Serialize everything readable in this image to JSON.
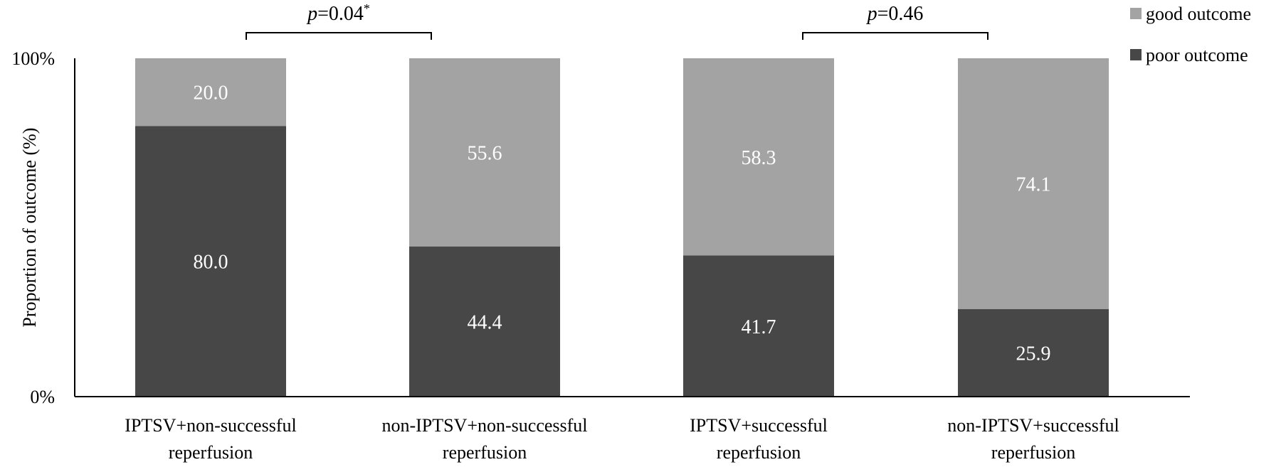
{
  "chart_data": {
    "type": "bar",
    "stacked": true,
    "ylabel": "Proportion of outcome (%)",
    "y_tick_labels": [
      "0%",
      "100%"
    ],
    "ylim": [
      0,
      100
    ],
    "categories": [
      [
        "IPTSV+non-successful",
        "reperfusion"
      ],
      [
        "non-IPTSV+non-successful",
        "reperfusion"
      ],
      [
        "IPTSV+successful",
        "reperfusion"
      ],
      [
        "non-IPTSV+successful",
        "reperfusion"
      ]
    ],
    "series": [
      {
        "name": "poor outcome",
        "color": "#474747",
        "label_color": "#ffffff",
        "values": [
          80.0,
          44.4,
          41.7,
          25.9
        ],
        "labels": [
          "80.0",
          "44.4",
          "41.7",
          "25.9"
        ]
      },
      {
        "name": "good outcome",
        "color": "#a3a3a3",
        "label_color": "#ffffff",
        "values": [
          20.0,
          55.6,
          58.3,
          74.1
        ],
        "labels": [
          "20.0",
          "55.6",
          "58.3",
          "74.1"
        ]
      }
    ],
    "legend": {
      "position": "top-right",
      "order": [
        "good outcome",
        "poor outcome"
      ]
    },
    "annotations": [
      {
        "between": [
          0,
          1
        ],
        "p_symbol": "p",
        "text": "=0.04",
        "superscript": "*"
      },
      {
        "between": [
          2,
          3
        ],
        "p_symbol": "p",
        "text": "=0.46",
        "superscript": ""
      }
    ],
    "grid": false
  }
}
